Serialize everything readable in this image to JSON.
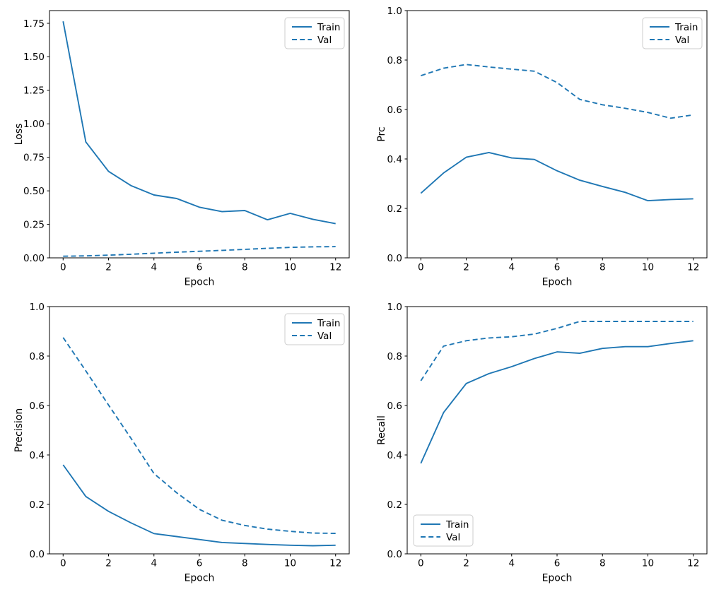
{
  "figure": {
    "background": "#ffffff",
    "line_color": "#1f77b4",
    "spine_color": "#000000",
    "legend_border_color": "#cccccc"
  },
  "chart_data": [
    {
      "type": "line",
      "ylabel": "Loss",
      "xlabel": "Epoch",
      "x": [
        0,
        1,
        2,
        3,
        4,
        5,
        6,
        7,
        8,
        9,
        10,
        11,
        12
      ],
      "series": [
        {
          "name": "Train",
          "style": "solid",
          "color": "#1f77b4",
          "values": [
            1.765,
            0.865,
            0.645,
            0.538,
            0.469,
            0.443,
            0.378,
            0.345,
            0.353,
            0.284,
            0.332,
            0.288,
            0.255
          ]
        },
        {
          "name": "Val",
          "style": "dashed",
          "color": "#1f77b4",
          "values": [
            0.012,
            0.015,
            0.02,
            0.027,
            0.035,
            0.042,
            0.049,
            0.056,
            0.063,
            0.071,
            0.078,
            0.082,
            0.084
          ]
        }
      ],
      "xlim": [
        -0.6,
        12.6
      ],
      "ylim": [
        0,
        1.845
      ],
      "xticks": {
        "values": [
          0,
          2,
          4,
          6,
          8,
          10,
          12
        ],
        "labels": [
          "0",
          "2",
          "4",
          "6",
          "8",
          "10",
          "12"
        ]
      },
      "yticks": {
        "values": [
          0,
          0.25,
          0.5,
          0.75,
          1.0,
          1.25,
          1.5,
          1.75
        ],
        "labels": [
          "0.00",
          "0.25",
          "0.50",
          "0.75",
          "1.00",
          "1.25",
          "1.50",
          "1.75"
        ]
      },
      "legend": {
        "position": "upper-right",
        "entries": [
          "Train",
          "Val"
        ]
      },
      "grid": false
    },
    {
      "type": "line",
      "ylabel": "Prc",
      "xlabel": "Epoch",
      "x": [
        0,
        1,
        2,
        3,
        4,
        5,
        6,
        7,
        8,
        9,
        10,
        11,
        12
      ],
      "series": [
        {
          "name": "Train",
          "style": "solid",
          "color": "#1f77b4",
          "values": [
            0.261,
            0.343,
            0.407,
            0.426,
            0.404,
            0.398,
            0.352,
            0.314,
            0.289,
            0.265,
            0.231,
            0.236,
            0.239
          ]
        },
        {
          "name": "Val",
          "style": "dashed",
          "color": "#1f77b4",
          "values": [
            0.737,
            0.767,
            0.782,
            0.772,
            0.763,
            0.755,
            0.709,
            0.641,
            0.619,
            0.605,
            0.588,
            0.565,
            0.578
          ]
        }
      ],
      "xlim": [
        -0.6,
        12.6
      ],
      "ylim": [
        0,
        1
      ],
      "xticks": {
        "values": [
          0,
          2,
          4,
          6,
          8,
          10,
          12
        ],
        "labels": [
          "0",
          "2",
          "4",
          "6",
          "8",
          "10",
          "12"
        ]
      },
      "yticks": {
        "values": [
          0,
          0.2,
          0.4,
          0.6,
          0.8,
          1.0
        ],
        "labels": [
          "0.0",
          "0.2",
          "0.4",
          "0.6",
          "0.8",
          "1.0"
        ]
      },
      "legend": {
        "position": "upper-right",
        "entries": [
          "Train",
          "Val"
        ]
      },
      "grid": false
    },
    {
      "type": "line",
      "ylabel": "Precision",
      "xlabel": "Epoch",
      "x": [
        0,
        1,
        2,
        3,
        4,
        5,
        6,
        7,
        8,
        9,
        10,
        11,
        12
      ],
      "series": [
        {
          "name": "Train",
          "style": "solid",
          "color": "#1f77b4",
          "values": [
            0.36,
            0.232,
            0.172,
            0.125,
            0.082,
            0.07,
            0.058,
            0.046,
            0.042,
            0.038,
            0.035,
            0.033,
            0.035
          ]
        },
        {
          "name": "Val",
          "style": "dashed",
          "color": "#1f77b4",
          "values": [
            0.875,
            0.74,
            0.602,
            0.466,
            0.325,
            0.247,
            0.18,
            0.136,
            0.115,
            0.1,
            0.091,
            0.084,
            0.083
          ]
        }
      ],
      "xlim": [
        -0.6,
        12.6
      ],
      "ylim": [
        0,
        1
      ],
      "xticks": {
        "values": [
          0,
          2,
          4,
          6,
          8,
          10,
          12
        ],
        "labels": [
          "0",
          "2",
          "4",
          "6",
          "8",
          "10",
          "12"
        ]
      },
      "yticks": {
        "values": [
          0,
          0.2,
          0.4,
          0.6,
          0.8,
          1.0
        ],
        "labels": [
          "0.0",
          "0.2",
          "0.4",
          "0.6",
          "0.8",
          "1.0"
        ]
      },
      "legend": {
        "position": "upper-right",
        "entries": [
          "Train",
          "Val"
        ]
      },
      "grid": false
    },
    {
      "type": "line",
      "ylabel": "Recall",
      "xlabel": "Epoch",
      "x": [
        0,
        1,
        2,
        3,
        4,
        5,
        6,
        7,
        8,
        9,
        10,
        11,
        12
      ],
      "series": [
        {
          "name": "Train",
          "style": "solid",
          "color": "#1f77b4",
          "values": [
            0.366,
            0.571,
            0.689,
            0.729,
            0.757,
            0.79,
            0.817,
            0.811,
            0.831,
            0.838,
            0.838,
            0.851,
            0.862
          ]
        },
        {
          "name": "Val",
          "style": "dashed",
          "color": "#1f77b4",
          "values": [
            0.7,
            0.84,
            0.862,
            0.873,
            0.878,
            0.889,
            0.912,
            0.94,
            0.94,
            0.94,
            0.94,
            0.94,
            0.94
          ]
        }
      ],
      "xlim": [
        -0.6,
        12.6
      ],
      "ylim": [
        0,
        1
      ],
      "xticks": {
        "values": [
          0,
          2,
          4,
          6,
          8,
          10,
          12
        ],
        "labels": [
          "0",
          "2",
          "4",
          "6",
          "8",
          "10",
          "12"
        ]
      },
      "yticks": {
        "values": [
          0,
          0.2,
          0.4,
          0.6,
          0.8,
          1.0
        ],
        "labels": [
          "0.0",
          "0.2",
          "0.4",
          "0.6",
          "0.8",
          "1.0"
        ]
      },
      "legend": {
        "position": "lower-left",
        "entries": [
          "Train",
          "Val"
        ]
      },
      "grid": false
    }
  ]
}
